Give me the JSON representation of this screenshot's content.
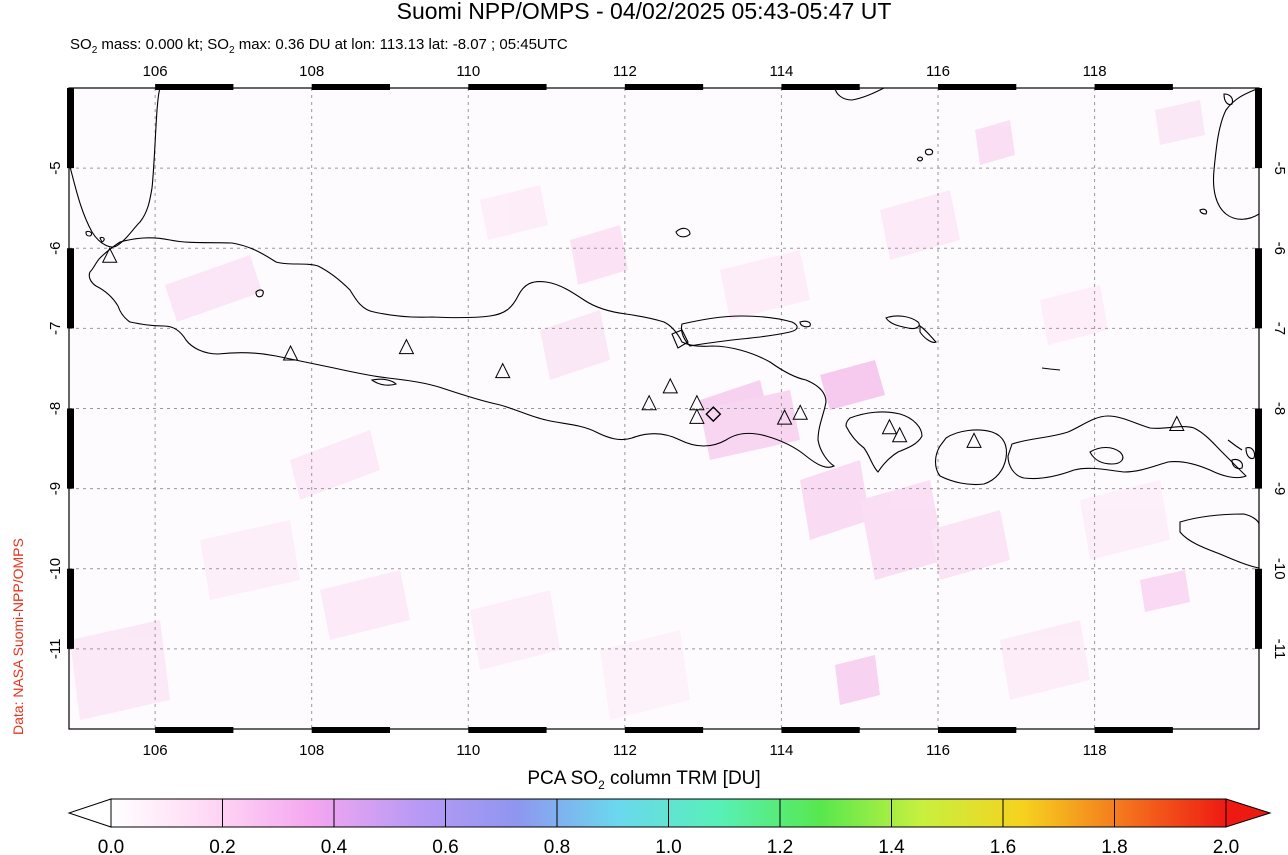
{
  "header": {
    "title": "Suomi NPP/OMPS - 04/02/2025 05:43-05:47 UT",
    "subtitle_pre": "SO",
    "subtitle_sub": "2",
    "subtitle_mid": " mass: 0.000 kt; SO",
    "subtitle_sub2": "2",
    "subtitle_post": " max: 0.36 DU at lon: 113.13 lat: -8.07 ; 05:45UTC"
  },
  "credit": "Data: NASA Suomi-NPP/OMPS",
  "map": {
    "lon_ticks": [
      "106",
      "108",
      "110",
      "112",
      "114",
      "116",
      "118"
    ],
    "lat_ticks": [
      "-5",
      "-6",
      "-7",
      "-8",
      "-9",
      "-10",
      "-11"
    ],
    "lon_range": [
      104.9,
      120.1
    ],
    "lat_range": [
      -12.0,
      -4.0
    ],
    "volcanoes": [
      {
        "lon": 105.42,
        "lat": -6.1
      },
      {
        "lon": 107.73,
        "lat": -7.32
      },
      {
        "lon": 109.21,
        "lat": -7.24
      },
      {
        "lon": 110.44,
        "lat": -7.54
      },
      {
        "lon": 112.31,
        "lat": -7.94
      },
      {
        "lon": 112.58,
        "lat": -7.73
      },
      {
        "lon": 112.92,
        "lat": -7.94
      },
      {
        "lon": 112.92,
        "lat": -8.11
      },
      {
        "lon": 114.04,
        "lat": -8.12
      },
      {
        "lon": 114.24,
        "lat": -8.06
      },
      {
        "lon": 115.38,
        "lat": -8.24
      },
      {
        "lon": 115.51,
        "lat": -8.34
      },
      {
        "lon": 116.46,
        "lat": -8.41
      },
      {
        "lon": 119.05,
        "lat": -8.2
      }
    ],
    "max_marker": {
      "lon": 113.13,
      "lat": -8.07
    }
  },
  "colorbar": {
    "title_pre": "PCA SO",
    "title_sub": "2",
    "title_post": " column TRM [DU]",
    "ticks": [
      "0.0",
      "0.2",
      "0.4",
      "0.6",
      "0.8",
      "1.0",
      "1.2",
      "1.4",
      "1.6",
      "1.8",
      "2.0"
    ],
    "colors": [
      "#ffffff",
      "#ffd7f5",
      "#f4a6f0",
      "#b99af5",
      "#8f96f0",
      "#6ad8ee",
      "#58f0b8",
      "#57e84e",
      "#c8f03e",
      "#f6d21e",
      "#f4741e",
      "#ee1a12"
    ]
  }
}
